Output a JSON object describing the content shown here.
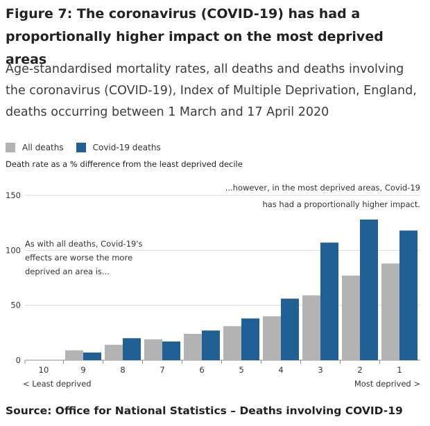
{
  "title": "Figure 7: The coronavirus (COVID-19) has had a proportionally higher impact on the most deprived areas",
  "subtitle": "Age-standardised mortality rates, all deaths and deaths involving the coronavirus (COVID-19), Index of Multiple Deprivation, England, deaths occurring between 1 March and 17 April 2020",
  "legend": {
    "all_deaths": "All deaths",
    "covid_deaths": "Covid-19 deaths"
  },
  "colors": {
    "all_deaths": "#b3b3b3",
    "covid_deaths": "#206095"
  },
  "source": "Source: Office for National Statistics – Deaths involving COVID-19",
  "chart_data": {
    "type": "bar",
    "ylabel": "Death rate as a % difference from the least deprived decile",
    "ylim": [
      0,
      150
    ],
    "yticks": [
      0,
      50,
      100,
      150
    ],
    "grid": true,
    "legend_position": "top-left",
    "categories": [
      "10",
      "9",
      "8",
      "7",
      "6",
      "5",
      "4",
      "3",
      "2",
      "1"
    ],
    "series": [
      {
        "name": "All deaths",
        "values": [
          0,
          9,
          14,
          19,
          24,
          31,
          40,
          59,
          77,
          88
        ]
      },
      {
        "name": "Covid-19 deaths",
        "values": [
          0,
          7,
          20,
          17,
          27,
          38,
          56,
          107,
          128,
          118
        ]
      }
    ],
    "x_left_note": "< Least deprived",
    "x_right_note": "Most deprived >",
    "annotations": {
      "left": [
        "As with all deaths, Covid-19's",
        "effects are worse the more",
        "deprived an area is..."
      ],
      "right": [
        "...however, in the most deprived areas, Covid-19",
        "has had a proportionally higher impact."
      ]
    }
  }
}
